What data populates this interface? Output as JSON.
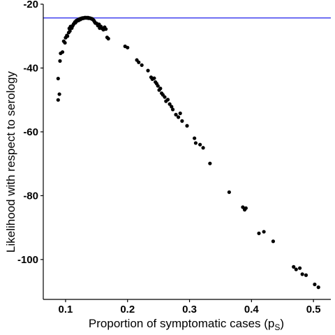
{
  "chart_data": {
    "type": "scatter",
    "title": "",
    "xlabel": "Proportion of symptomatic cases (p",
    "xlabel_sub": "S",
    "xlabel_close": ")",
    "ylabel": "Likelihood with respect to serology",
    "xlim": [
      0.064,
      0.528
    ],
    "ylim": [
      -112.5,
      -20
    ],
    "x_ticks": [
      0.1,
      0.2,
      0.3,
      0.4,
      0.5
    ],
    "x_tick_labels": [
      "0.1",
      "0.2",
      "0.3",
      "0.4",
      "0.5"
    ],
    "y_ticks": [
      -20,
      -40,
      -60,
      -80,
      -100
    ],
    "y_tick_labels": [
      "-20",
      "-40",
      "-60",
      "-80",
      "-100"
    ],
    "grid": false,
    "point_color": "#000000",
    "hline": {
      "y": -24.3,
      "color": "#3333ee"
    },
    "points": [
      [
        0.088,
        -43.3
      ],
      [
        0.088,
        -50.0
      ],
      [
        0.09,
        -48.2
      ],
      [
        0.091,
        -37.8
      ],
      [
        0.092,
        -35.4
      ],
      [
        0.095,
        -35.0
      ],
      [
        0.097,
        -31.6
      ],
      [
        0.099,
        -32.1
      ],
      [
        0.1,
        -30.5
      ],
      [
        0.102,
        -29.8
      ],
      [
        0.103,
        -30.0
      ],
      [
        0.105,
        -28.9
      ],
      [
        0.106,
        -27.6
      ],
      [
        0.107,
        -28.4
      ],
      [
        0.108,
        -27.0
      ],
      [
        0.11,
        -27.5
      ],
      [
        0.111,
        -26.9
      ],
      [
        0.112,
        -26.6
      ],
      [
        0.113,
        -26.2
      ],
      [
        0.114,
        -26.0
      ],
      [
        0.115,
        -25.6
      ],
      [
        0.116,
        -25.8
      ],
      [
        0.117,
        -25.2
      ],
      [
        0.118,
        -25.3
      ],
      [
        0.119,
        -25.0
      ],
      [
        0.12,
        -24.9
      ],
      [
        0.121,
        -25.1
      ],
      [
        0.122,
        -24.7
      ],
      [
        0.123,
        -24.6
      ],
      [
        0.124,
        -24.8
      ],
      [
        0.125,
        -24.5
      ],
      [
        0.126,
        -24.4
      ],
      [
        0.127,
        -24.5
      ],
      [
        0.128,
        -24.3
      ],
      [
        0.129,
        -24.4
      ],
      [
        0.13,
        -24.3
      ],
      [
        0.131,
        -24.2
      ],
      [
        0.132,
        -24.3
      ],
      [
        0.133,
        -24.2
      ],
      [
        0.134,
        -24.3
      ],
      [
        0.135,
        -24.3
      ],
      [
        0.136,
        -24.2
      ],
      [
        0.137,
        -24.4
      ],
      [
        0.138,
        -24.3
      ],
      [
        0.139,
        -24.4
      ],
      [
        0.14,
        -24.4
      ],
      [
        0.141,
        -24.5
      ],
      [
        0.142,
        -24.6
      ],
      [
        0.143,
        -24.6
      ],
      [
        0.144,
        -24.8
      ],
      [
        0.145,
        -25.0
      ],
      [
        0.146,
        -25.2
      ],
      [
        0.147,
        -25.6
      ],
      [
        0.148,
        -25.9
      ],
      [
        0.15,
        -26.0
      ],
      [
        0.152,
        -26.7
      ],
      [
        0.154,
        -26.3
      ],
      [
        0.155,
        -27.5
      ],
      [
        0.157,
        -27.0
      ],
      [
        0.159,
        -27.6
      ],
      [
        0.161,
        -28.0
      ],
      [
        0.163,
        -27.2
      ],
      [
        0.165,
        -27.8
      ],
      [
        0.167,
        -30.4
      ],
      [
        0.169,
        -30.8
      ],
      [
        0.196,
        -33.2
      ],
      [
        0.2,
        -33.6
      ],
      [
        0.215,
        -37.5
      ],
      [
        0.218,
        -38.2
      ],
      [
        0.223,
        -39.1
      ],
      [
        0.233,
        -40.8
      ],
      [
        0.238,
        -42.9
      ],
      [
        0.24,
        -43.5
      ],
      [
        0.243,
        -43.2
      ],
      [
        0.245,
        -44.4
      ],
      [
        0.247,
        -44.9
      ],
      [
        0.249,
        -45.6
      ],
      [
        0.251,
        -46.9
      ],
      [
        0.253,
        -46.4
      ],
      [
        0.255,
        -47.9
      ],
      [
        0.257,
        -48.4
      ],
      [
        0.26,
        -49.1
      ],
      [
        0.262,
        -50.4
      ],
      [
        0.265,
        -49.9
      ],
      [
        0.268,
        -51.3
      ],
      [
        0.271,
        -52.1
      ],
      [
        0.273,
        -53.0
      ],
      [
        0.278,
        -54.6
      ],
      [
        0.282,
        -55.4
      ],
      [
        0.285,
        -54.2
      ],
      [
        0.288,
        -56.6
      ],
      [
        0.296,
        -58.1
      ],
      [
        0.308,
        -62.0
      ],
      [
        0.31,
        -63.5
      ],
      [
        0.317,
        -64.0
      ],
      [
        0.322,
        -65.0
      ],
      [
        0.333,
        -69.9
      ],
      [
        0.364,
        -78.9
      ],
      [
        0.386,
        -83.6
      ],
      [
        0.389,
        -84.4
      ],
      [
        0.391,
        -83.9
      ],
      [
        0.412,
        -91.8
      ],
      [
        0.42,
        -91.3
      ],
      [
        0.435,
        -94.3
      ],
      [
        0.468,
        -102.3
      ],
      [
        0.472,
        -103.1
      ],
      [
        0.478,
        -102.7
      ],
      [
        0.482,
        -104.6
      ],
      [
        0.488,
        -104.9
      ],
      [
        0.502,
        -107.8
      ],
      [
        0.508,
        -108.7
      ]
    ]
  }
}
